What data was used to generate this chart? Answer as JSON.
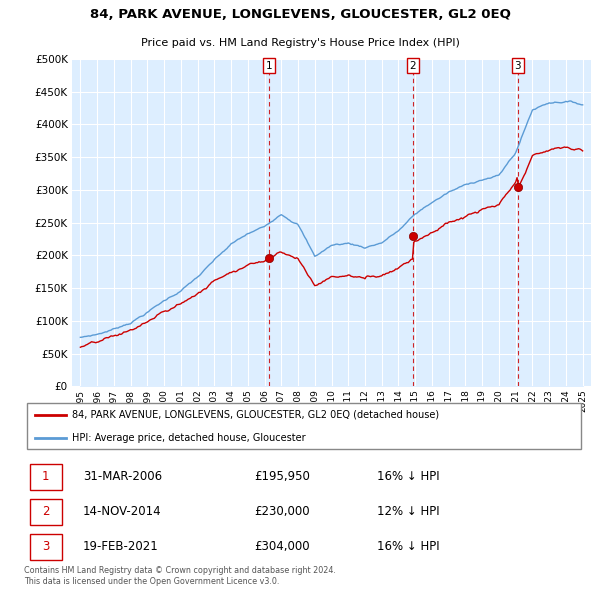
{
  "title1": "84, PARK AVENUE, LONGLEVENS, GLOUCESTER, GL2 0EQ",
  "title2": "Price paid vs. HM Land Registry's House Price Index (HPI)",
  "legend_line1": "84, PARK AVENUE, LONGLEVENS, GLOUCESTER, GL2 0EQ (detached house)",
  "legend_line2": "HPI: Average price, detached house, Gloucester",
  "transactions": [
    {
      "num": 1,
      "date": "31-MAR-2006",
      "price": 195950,
      "pct": "16%",
      "dir": "↓"
    },
    {
      "num": 2,
      "date": "14-NOV-2014",
      "price": 230000,
      "pct": "12%",
      "dir": "↓"
    },
    {
      "num": 3,
      "date": "19-FEB-2021",
      "price": 304000,
      "pct": "16%",
      "dir": "↓"
    }
  ],
  "transaction_years": [
    2006.25,
    2014.87,
    2021.13
  ],
  "footer": "Contains HM Land Registry data © Crown copyright and database right 2024.\nThis data is licensed under the Open Government Licence v3.0.",
  "hpi_color": "#5b9bd5",
  "hpi_fill_color": "#ddeeff",
  "price_color": "#cc0000",
  "vline_color": "#cc0000",
  "background_color": "#ffffff",
  "plot_bg_color": "#ddeeff",
  "grid_color": "#ffffff",
  "ylim": [
    0,
    500000
  ],
  "yticks": [
    0,
    50000,
    100000,
    150000,
    200000,
    250000,
    300000,
    350000,
    400000,
    450000,
    500000
  ],
  "xlim": [
    1994.5,
    2025.5
  ],
  "xticks": [
    1995,
    1996,
    1997,
    1998,
    1999,
    2000,
    2001,
    2002,
    2003,
    2004,
    2005,
    2006,
    2007,
    2008,
    2009,
    2010,
    2011,
    2012,
    2013,
    2014,
    2015,
    2016,
    2017,
    2018,
    2019,
    2020,
    2021,
    2022,
    2023,
    2024,
    2025
  ]
}
